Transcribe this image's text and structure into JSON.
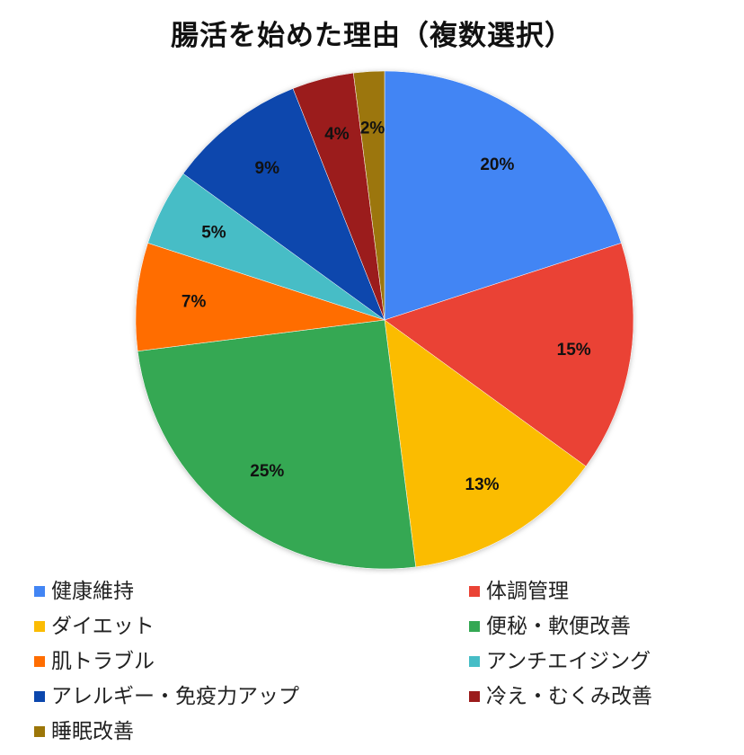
{
  "chart_data": {
    "type": "pie",
    "title": "腸活を始めた理由（複数選択）",
    "slices": [
      {
        "label": "健康維持",
        "value": 20,
        "display": "20%",
        "color": "#4285F4"
      },
      {
        "label": "体調管理",
        "value": 15,
        "display": "15%",
        "color": "#EA4335"
      },
      {
        "label": "ダイエット",
        "value": 13,
        "display": "13%",
        "color": "#FBBC04"
      },
      {
        "label": "便秘・軟便改善",
        "value": 25,
        "display": "25%",
        "color": "#34A853"
      },
      {
        "label": "肌トラブル",
        "value": 7,
        "display": "7%",
        "color": "#FF6D01"
      },
      {
        "label": "アンチエイジング",
        "value": 5,
        "display": "5%",
        "color": "#46BDC6"
      },
      {
        "label": "アレルギー・免疫力アップ",
        "value": 9,
        "display": "9%",
        "color": "#0B47AD"
      },
      {
        "label": "冷え・むくみ改善",
        "value": 4,
        "display": "4%",
        "color": "#9B1C1C"
      },
      {
        "label": "睡眠改善",
        "value": 2,
        "display": "2%",
        "color": "#9C7608"
      }
    ],
    "legend_position": "bottom"
  }
}
